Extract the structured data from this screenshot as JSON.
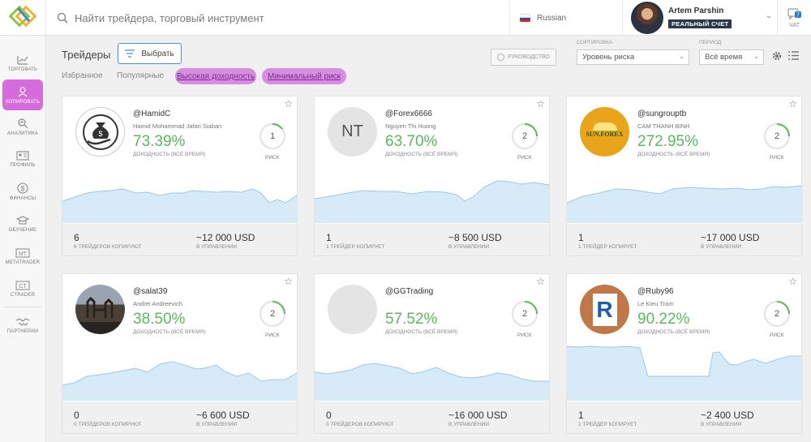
{
  "header": {
    "search_placeholder": "Найти трейдера, торговый инструмент",
    "language": "Russian",
    "user_name": "Artem Parshin",
    "account_badge": "РЕАЛЬНЫЙ СЧЕТ",
    "chat_label": "ЧАТ",
    "chat_count": "7"
  },
  "sidebar": {
    "items": [
      {
        "label": "ТОРГОВАТЬ",
        "icon": "chart-icon"
      },
      {
        "label": "КОПИРОВАТЬ",
        "icon": "copy-traders-icon"
      },
      {
        "label": "АНАЛИТИКА",
        "icon": "analytics-icon"
      },
      {
        "label": "ПРОФИЛЬ",
        "icon": "profile-icon"
      },
      {
        "label": "ФИНАНСЫ",
        "icon": "dollar-icon"
      },
      {
        "label": "ОБУЧЕНИЕ",
        "icon": "graduation-cap-icon"
      },
      {
        "label": "METATRADER",
        "icon": "mt-icon"
      },
      {
        "label": "CTRADER",
        "icon": "ct-icon"
      },
      {
        "label": "ПАРТНЕРАМ",
        "icon": "handshake-icon"
      }
    ]
  },
  "page": {
    "title": "Трейдеры",
    "choose_label": "Выбрать",
    "guide_label": "РУКОВОДСТВО",
    "sort_label": "СОРТИРОВКА",
    "sort_value": "Уровень риска",
    "period_label": "ПЕРИОД",
    "period_value": "Всё время"
  },
  "filters": [
    "Избранное",
    "Популярные",
    "Высокая доходность",
    "Минимальный риск"
  ],
  "cards": [
    {
      "nick": "@HamidC",
      "name": "Hamid Mohammad Jafari Siaban",
      "yield": "73.39%",
      "yield_label": "ДОХОДНОСТЬ (ВСЁ ВРЕМЯ)",
      "risk": "1",
      "risk_label": "РИСК",
      "copiers": "6",
      "copiers_label": "6 ТРЕЙДЕРОВ КОПИРУЮТ",
      "managed": "~12 000 USD",
      "managed_label": "В УПРАВЛЕНИИ",
      "avatar_text": "",
      "risk_level": 0.15
    },
    {
      "nick": "@Forex6666",
      "name": "Nguyen Thi Huong",
      "yield": "63.70%",
      "yield_label": "ДОХОДНОСТЬ (ВСЁ ВРЕМЯ)",
      "risk": "2",
      "risk_label": "РИСК",
      "copiers": "1",
      "copiers_label": "1 ТРЕЙДЕР КОПИРУЕТ",
      "managed": "~8 500 USD",
      "managed_label": "В УПРАВЛЕНИИ",
      "avatar_text": "NT",
      "risk_level": 0.25
    },
    {
      "nick": "@sungrouptb",
      "name": "CAM THANH BINH",
      "yield": "272.95%",
      "yield_label": "ДОХОДНОСТЬ (ВСЁ ВРЕМЯ)",
      "risk": "2",
      "risk_label": "РИСК",
      "copiers": "1",
      "copiers_label": "1 ТРЕЙДЕР КОПИРУЕТ",
      "managed": "~17 000 USD",
      "managed_label": "В УПРАВЛЕНИИ",
      "avatar_text": "SUN.FOREX",
      "risk_level": 0.25
    },
    {
      "nick": "@salat39",
      "name": "Andrei Andreevich",
      "yield": "38.50%",
      "yield_label": "ДОХОДНОСТЬ (ВСЁ ВРЕМЯ)",
      "risk": "2",
      "risk_label": "РИСК",
      "copiers": "0",
      "copiers_label": "0 ТРЕЙДЕРОВ КОПИРУЮТ",
      "managed": "~6 600 USD",
      "managed_label": "В УПРАВЛЕНИИ",
      "avatar_text": "",
      "risk_level": 0.25
    },
    {
      "nick": "@GGTrading",
      "name": "",
      "yield": "57.52%",
      "yield_label": "ДОХОДНОСТЬ (ВСЁ ВРЕМЯ)",
      "risk": "2",
      "risk_label": "РИСК",
      "copiers": "0",
      "copiers_label": "0 ТРЕЙДЕРОВ КОПИРУЮТ",
      "managed": "~16 000 USD",
      "managed_label": "В УПРАВЛЕНИИ",
      "avatar_text": "",
      "risk_level": 0.25
    },
    {
      "nick": "@Ruby96",
      "name": "Le Kieu Tram",
      "yield": "90.22%",
      "yield_label": "ДОХОДНОСТЬ (ВСЁ ВРЕМЯ)",
      "risk": "2",
      "risk_label": "РИСК",
      "copiers": "1",
      "copiers_label": "1 ТРЕЙДЕР КОПИРУЕТ",
      "managed": "~2 400 USD",
      "managed_label": "В УПРАВЛЕНИИ",
      "avatar_text": "",
      "risk_level": 0.25
    }
  ],
  "colors": {
    "accent": "#d86bdc",
    "green": "#5cb85c",
    "chart_fill": "#d7eaf7",
    "chart_line": "#9cc8e8",
    "badge": "#2b3a4a"
  }
}
